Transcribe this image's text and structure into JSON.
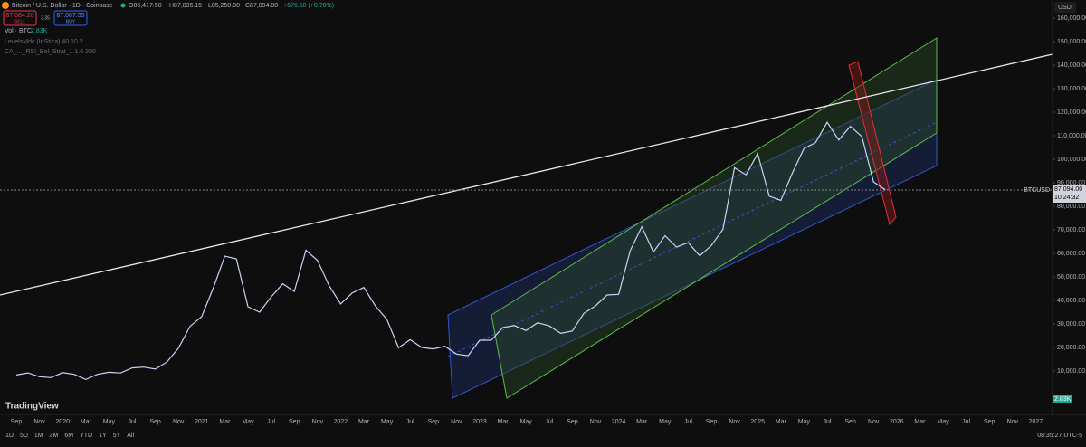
{
  "header": {
    "symbol": "Bitcoin / U.S. Dollar · 1D · Coinbase",
    "open": "O86,417.50",
    "high": "H87,835.15",
    "low": "L85,250.00",
    "close": "C87,094.00",
    "change": "+676.50 (+0.78%)",
    "sell_price": "87,084.20",
    "sell_label": "SELL",
    "spread": "3.35",
    "buy_price": "87,087.55",
    "buy_label": "BUY",
    "volume_label": "Vol · BTC",
    "volume_value": "2.83K",
    "indicator_1": "LevelsMdc (InStica) 40 10 2",
    "indicator_2": "CA_..._RSI_Bol_Strat_1.1.6 200",
    "currency": "USD"
  },
  "price_tag": {
    "symbol": "BTCUSD",
    "price": "87,094.00",
    "countdown": "10:24:32"
  },
  "volume_tag": "2.83K",
  "logo": "TradingView",
  "toolbar": {
    "ranges": [
      "1D",
      "5D",
      "1M",
      "3M",
      "6M",
      "YTD",
      "1Y",
      "5Y",
      "All"
    ],
    "clock": "08:35:27 UTC-5"
  },
  "chart_data": {
    "type": "line",
    "color": "#c8d4f5",
    "x": [
      "2019-09",
      "2019-10",
      "2019-11",
      "2019-12",
      "2020-01",
      "2020-02",
      "2020-03",
      "2020-04",
      "2020-05",
      "2020-06",
      "2020-07",
      "2020-08",
      "2020-09",
      "2020-10",
      "2020-11",
      "2020-12",
      "2021-01",
      "2021-02",
      "2021-03",
      "2021-04",
      "2021-05",
      "2021-06",
      "2021-07",
      "2021-08",
      "2021-09",
      "2021-10",
      "2021-11",
      "2021-12",
      "2022-01",
      "2022-02",
      "2022-03",
      "2022-04",
      "2022-05",
      "2022-06",
      "2022-07",
      "2022-08",
      "2022-09",
      "2022-10",
      "2022-11",
      "2022-12",
      "2023-01",
      "2023-02",
      "2023-03",
      "2023-04",
      "2023-05",
      "2023-06",
      "2023-07",
      "2023-08",
      "2023-09",
      "2023-10",
      "2023-11",
      "2023-12",
      "2024-01",
      "2024-02",
      "2024-03",
      "2024-04",
      "2024-05",
      "2024-06",
      "2024-07",
      "2024-08",
      "2024-09",
      "2024-10",
      "2024-11",
      "2024-12",
      "2025-01",
      "2025-02",
      "2025-03",
      "2025-04",
      "2025-05",
      "2025-06",
      "2025-07",
      "2025-08",
      "2025-09",
      "2025-10",
      "2025-11",
      "2025-12"
    ],
    "values": [
      8300,
      9200,
      7600,
      7200,
      9300,
      8600,
      6400,
      8600,
      9450,
      9150,
      11300,
      11650,
      10800,
      13800,
      19700,
      29000,
      33100,
      45200,
      58800,
      57700,
      37300,
      35000,
      41500,
      47100,
      43800,
      61300,
      57000,
      46300,
      38500,
      43200,
      45500,
      37700,
      31800,
      19900,
      23300,
      20000,
      19400,
      20500,
      17200,
      16500,
      23100,
      23100,
      28500,
      29300,
      27200,
      30500,
      29200,
      26000,
      27000,
      34500,
      37700,
      42300,
      42600,
      61200,
      71300,
      60600,
      67500,
      62700,
      64600,
      59000,
      63300,
      70200,
      96400,
      93400,
      102400,
      84300,
      82500,
      94200,
      104600,
      107100,
      115700,
      108200,
      114000,
      109600,
      90400,
      87094
    ],
    "xticks": [
      "Sep",
      "Nov",
      "2020",
      "Mar",
      "May",
      "Jul",
      "Sep",
      "Nov",
      "2021",
      "Mar",
      "May",
      "Jul",
      "Sep",
      "Nov",
      "2022",
      "Mar",
      "May",
      "Jul",
      "Sep",
      "Nov",
      "2023",
      "Mar",
      "May",
      "Jul",
      "Sep",
      "Nov",
      "2024",
      "Mar",
      "May",
      "Jul",
      "Sep",
      "Nov",
      "2025",
      "Mar",
      "May",
      "Jul",
      "Sep",
      "Nov",
      "2026",
      "Mar",
      "May",
      "Jul",
      "Sep",
      "Nov",
      "2027"
    ],
    "ylim": [
      -7300,
      167700
    ],
    "yticks": [
      {
        "value": 10000,
        "label": "10,000.00"
      },
      {
        "value": 20000,
        "label": "20,000.00"
      },
      {
        "value": 30000,
        "label": "30,000.00"
      },
      {
        "value": 40000,
        "label": "40,000.00"
      },
      {
        "value": 50000,
        "label": "50,000.00"
      },
      {
        "value": 60000,
        "label": "60,000.00"
      },
      {
        "value": 70000,
        "label": "70,000.00"
      },
      {
        "value": 80000,
        "label": "80,000.00"
      },
      {
        "value": 90000,
        "label": "90,000.00"
      },
      {
        "value": 100000,
        "label": "100,000.00"
      },
      {
        "value": 110000,
        "label": "110,000.00"
      },
      {
        "value": 120000,
        "label": "120,000.00"
      },
      {
        "value": 130000,
        "label": "130,000.00"
      },
      {
        "value": 140000,
        "label": "140,000.00"
      },
      {
        "value": 150000,
        "label": "150,000.00"
      },
      {
        "value": 160000,
        "label": "160,000.00"
      }
    ]
  }
}
